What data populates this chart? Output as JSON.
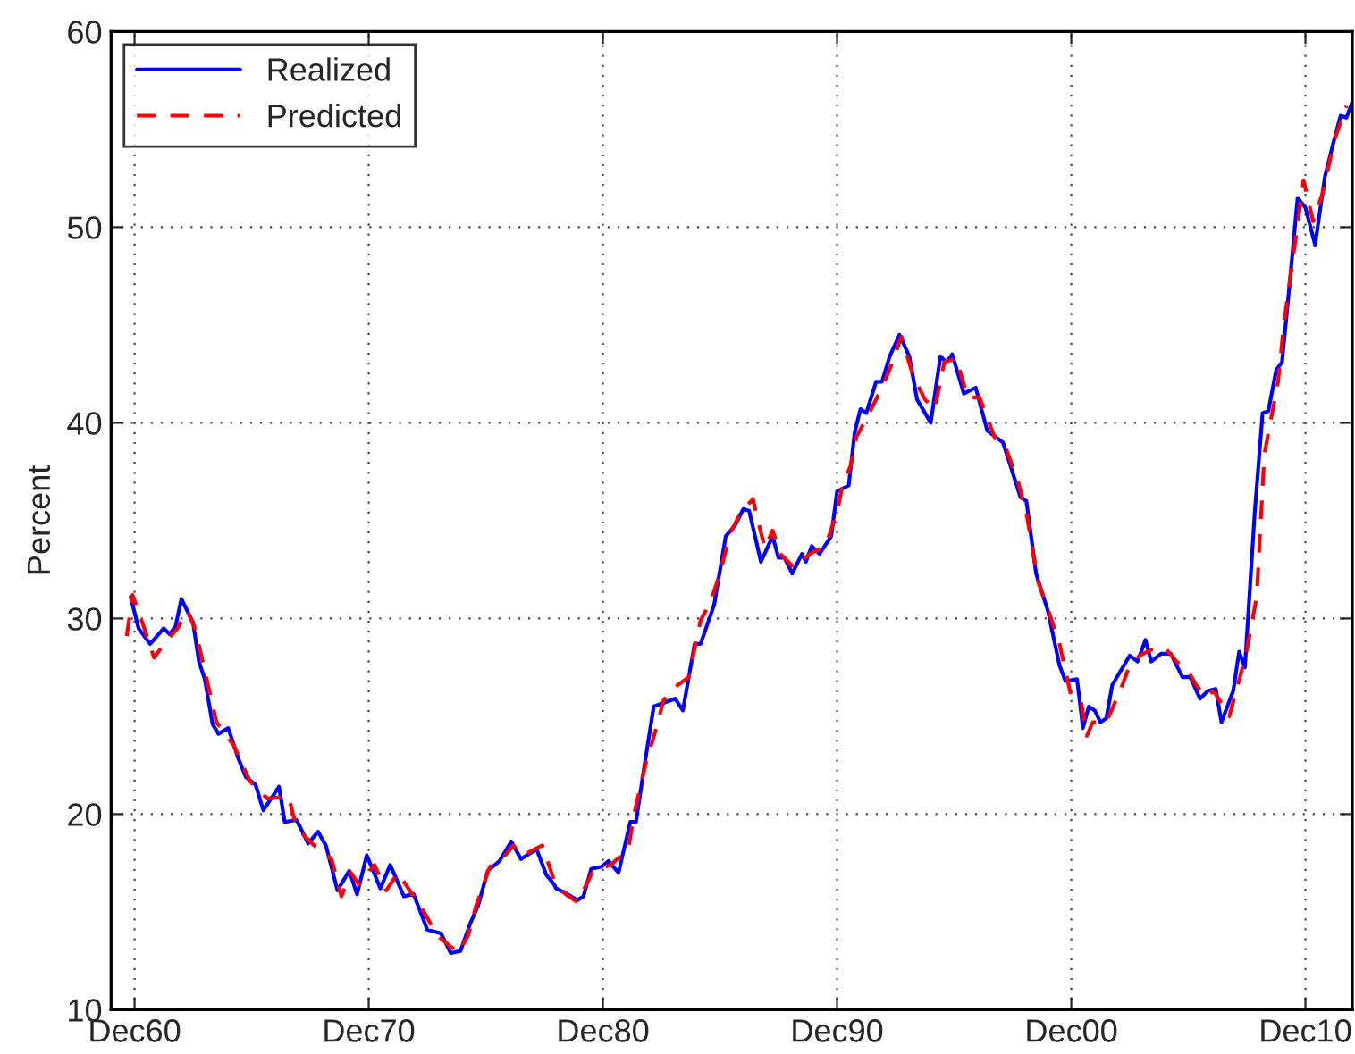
{
  "chart_data": {
    "type": "line",
    "ylabel": "Percent",
    "xlim": [
      "1959-12",
      "2012-12"
    ],
    "ylim": [
      10,
      60
    ],
    "xticks": [
      {
        "value": "1960-12",
        "label": "Dec60"
      },
      {
        "value": "1970-12",
        "label": "Dec70"
      },
      {
        "value": "1980-12",
        "label": "Dec80"
      },
      {
        "value": "1990-12",
        "label": "Dec90"
      },
      {
        "value": "2000-12",
        "label": "Dec00"
      },
      {
        "value": "2010-12",
        "label": "Dec10"
      }
    ],
    "yticks": [
      10,
      20,
      30,
      40,
      50,
      60
    ],
    "grid": true,
    "legend": "top left",
    "series": [
      {
        "name": "Realized",
        "color": "#0000ff",
        "line_style": "solid",
        "x": [
          "1960-10",
          "1961-02",
          "1961-08",
          "1962-03",
          "1962-06",
          "1962-09",
          "1962-12",
          "1963-06",
          "1963-09",
          "1963-12",
          "1964-04",
          "1964-07",
          "1964-12",
          "1965-05",
          "1965-09",
          "1966-02",
          "1966-06",
          "1967-02",
          "1967-05",
          "1967-11",
          "1968-05",
          "1968-10",
          "1969-02",
          "1969-08",
          "1970-02",
          "1970-06",
          "1970-11",
          "1971-06",
          "1971-11",
          "1972-06",
          "1972-11",
          "1973-06",
          "1974-01",
          "1974-06",
          "1974-11",
          "1975-04",
          "1975-08",
          "1976-01",
          "1976-07",
          "1977-01",
          "1977-06",
          "1978-02",
          "1978-07",
          "1978-11",
          "1978-12",
          "1979-06",
          "1979-11",
          "1980-02",
          "1980-06",
          "1980-11",
          "1981-03",
          "1981-08",
          "1982-02",
          "1982-05",
          "1982-09",
          "1983-02",
          "1984-01",
          "1984-05",
          "1984-11",
          "1985-02",
          "1985-09",
          "1986-03",
          "1986-08",
          "1986-12",
          "1987-03",
          "1987-09",
          "1988-03",
          "1988-06",
          "1988-09",
          "1989-01",
          "1989-06",
          "1989-08",
          "1989-11",
          "1990-03",
          "1990-09",
          "1990-12",
          "1991-06",
          "1991-09",
          "1991-12",
          "1992-03",
          "1992-08",
          "1992-11",
          "1993-03",
          "1993-08",
          "1994-01",
          "1994-05",
          "1994-12",
          "1995-05",
          "1995-08",
          "1995-11",
          "1996-05",
          "1996-11",
          "1997-05",
          "1998-01",
          "1998-10",
          "1999-01",
          "1999-06",
          "1999-12",
          "2000-06",
          "2000-09",
          "2001-03",
          "2001-06",
          "2001-09",
          "2001-12",
          "2002-03",
          "2002-06",
          "2002-09",
          "2003-06",
          "2003-10",
          "2004-02",
          "2004-05",
          "2004-10",
          "2005-03",
          "2005-09",
          "2006-01",
          "2006-06",
          "2006-10",
          "2007-02",
          "2007-05",
          "2007-11",
          "2008-02",
          "2008-05",
          "2008-10",
          "2009-02",
          "2009-05",
          "2009-09",
          "2009-12",
          "2010-04",
          "2010-08",
          "2010-12",
          "2011-05",
          "2011-10",
          "2012-02",
          "2012-06",
          "2012-09",
          "2012-12"
        ],
        "values": [
          31.1,
          29.5,
          28.7,
          29.5,
          29.2,
          29.6,
          31.0,
          29.8,
          27.8,
          26.9,
          24.6,
          24.1,
          24.4,
          22.9,
          21.9,
          21.5,
          20.2,
          21.4,
          19.6,
          19.7,
          18.5,
          19.1,
          18.4,
          16.1,
          17.1,
          15.9,
          17.9,
          16.2,
          17.4,
          15.8,
          15.9,
          14.1,
          13.9,
          12.9,
          13.0,
          14.4,
          15.3,
          17.1,
          17.6,
          18.6,
          17.7,
          18.2,
          16.9,
          16.4,
          16.2,
          15.9,
          15.6,
          15.8,
          17.2,
          17.3,
          17.6,
          17.0,
          19.6,
          19.6,
          22.3,
          25.5,
          25.9,
          25.3,
          28.7,
          28.7,
          30.7,
          34.2,
          34.8,
          35.6,
          35.5,
          32.9,
          34.2,
          33.1,
          33.1,
          32.3,
          33.3,
          32.9,
          33.7,
          33.3,
          34.2,
          36.5,
          36.8,
          39.5,
          40.7,
          40.5,
          42.1,
          42.1,
          43.4,
          44.5,
          43.4,
          41.2,
          40.0,
          43.4,
          43.1,
          43.5,
          41.5,
          41.8,
          39.6,
          39.0,
          36.2,
          36.0,
          32.3,
          30.4,
          27.6,
          26.8,
          26.9,
          24.4,
          25.5,
          25.3,
          24.7,
          24.9,
          26.6,
          28.1,
          27.8,
          28.9,
          27.8,
          28.2,
          28.2,
          27.0,
          27.0,
          25.9,
          26.3,
          26.4,
          24.7,
          26.3,
          28.3,
          27.5,
          35.4,
          40.5,
          40.6,
          42.7,
          43.1,
          47.2,
          51.5,
          51.0,
          49.1,
          52.6,
          54.2,
          55.7,
          55.6,
          56.4
        ]
      },
      {
        "name": "Predicted",
        "color": "#ff0000",
        "line_style": "dashed",
        "x": [
          "1960-08",
          "1960-11",
          "1961-04",
          "1961-10",
          "1962-04",
          "1962-10",
          "1963-03",
          "1963-07",
          "1964-01",
          "1964-06",
          "1965-03",
          "1965-11",
          "1966-08",
          "1967-07",
          "1967-11",
          "1968-08",
          "1969-05",
          "1969-10",
          "1970-03",
          "1970-07",
          "1971-03",
          "1971-09",
          "1972-03",
          "1973-05",
          "1973-11",
          "1974-10",
          "1975-03",
          "1975-07",
          "1976-02",
          "1976-10",
          "1977-02",
          "1977-07",
          "1978-05",
          "1978-11",
          "1979-05",
          "1979-11",
          "1980-07",
          "1981-04",
          "1982-01",
          "1982-04",
          "1982-10",
          "1983-04",
          "1983-07",
          "1984-01",
          "1984-08",
          "1985-02",
          "1985-07",
          "1985-12",
          "1986-05",
          "1986-11",
          "1987-05",
          "1987-07",
          "1987-11",
          "1988-03",
          "1988-07",
          "1989-02",
          "1989-10",
          "1990-06",
          "1990-12",
          "1991-03",
          "1991-07",
          "1991-10",
          "1992-04",
          "1992-10",
          "1993-02",
          "1993-09",
          "1994-03",
          "1994-09",
          "1995-02",
          "1995-07",
          "1996-01",
          "1996-07",
          "1997-01",
          "1997-09",
          "1998-03",
          "1998-09",
          "1999-01",
          "1999-07",
          "2000-01",
          "2000-06",
          "2000-12",
          "2001-05",
          "2001-08",
          "2001-11",
          "2002-06",
          "2003-01",
          "2003-06",
          "2003-11",
          "2004-05",
          "2004-12",
          "2005-06",
          "2005-12",
          "2006-04",
          "2006-09",
          "2007-01",
          "2007-09",
          "2008-03",
          "2008-06",
          "2008-11",
          "2009-03",
          "2009-10",
          "2010-01",
          "2010-07",
          "2010-11",
          "2011-04",
          "2011-09",
          "2012-03",
          "2012-09"
        ],
        "values": [
          29.1,
          31.2,
          29.8,
          28.0,
          28.8,
          29.5,
          30.4,
          29.5,
          26.9,
          24.7,
          23.5,
          21.7,
          20.8,
          20.9,
          19.3,
          18.4,
          17.7,
          15.8,
          17.0,
          16.4,
          17.4,
          16.1,
          17.0,
          14.9,
          13.8,
          12.9,
          13.8,
          15.3,
          17.3,
          17.9,
          18.4,
          17.9,
          18.4,
          16.6,
          15.9,
          15.5,
          17.1,
          17.4,
          18.2,
          20.0,
          22.6,
          24.6,
          25.8,
          26.5,
          27.0,
          29.9,
          30.8,
          32.3,
          34.3,
          35.5,
          36.1,
          35.2,
          33.6,
          34.5,
          33.3,
          32.6,
          33.3,
          33.7,
          35.4,
          36.9,
          37.8,
          39.3,
          40.4,
          41.6,
          42.5,
          44.4,
          42.4,
          41.2,
          40.7,
          43.1,
          43.3,
          41.3,
          41.3,
          39.2,
          38.6,
          36.9,
          35.4,
          31.9,
          30.2,
          28.7,
          26.0,
          25.8,
          24.0,
          24.7,
          24.7,
          26.3,
          27.6,
          28.1,
          28.4,
          28.5,
          27.8,
          27.3,
          26.6,
          26.0,
          26.3,
          25.0,
          27.2,
          28.4,
          31.1,
          38.4,
          42.1,
          45.1,
          49.4,
          52.4,
          50.3,
          51.8,
          54.5,
          56.2
        ]
      }
    ]
  }
}
